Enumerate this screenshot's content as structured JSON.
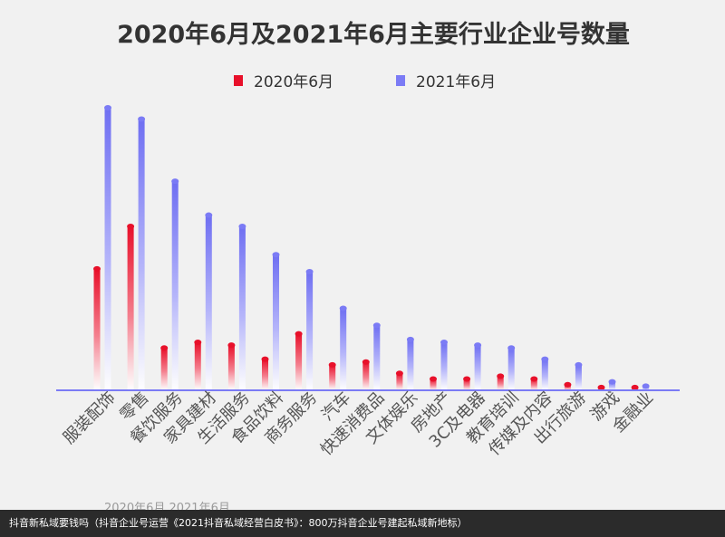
{
  "chart_data": {
    "type": "bar",
    "title": "2020年6月及2021年6月主要行业企业号数量",
    "categories": [
      "服装配饰",
      "零售",
      "餐饮服务",
      "家具建材",
      "生活服务",
      "食品饮料",
      "商务服务",
      "汽车",
      "快速消费品",
      "文体娱乐",
      "房地产",
      "3C及电器",
      "教育培训",
      "传媒及内容",
      "出行旅游",
      "游戏",
      "金融业"
    ],
    "series": [
      {
        "name": "2020年6月",
        "values": [
          43,
          58,
          15,
          17,
          16,
          11,
          20,
          9,
          10,
          6,
          4,
          4,
          5,
          4,
          2,
          1,
          1
        ]
      },
      {
        "name": "2021年6月",
        "values": [
          100,
          96,
          74,
          62,
          58,
          48,
          42,
          29,
          23,
          18,
          17,
          16,
          15,
          11,
          9,
          3,
          1.5
        ]
      }
    ],
    "ylim": [
      0,
      100
    ],
    "legend_position": "top-center",
    "grid": false,
    "colors": {
      "series_2020": "#e8102a",
      "series_2021": "#7b7bf5",
      "axis": "#7b7bf5"
    }
  },
  "caption": "抖音新私域要钱吗（抖音企业号运营《2021抖音私域经营白皮书》：800万抖音企业号建起私域新地标）",
  "partial_hidden_text": "2020年6月  2021年6月"
}
